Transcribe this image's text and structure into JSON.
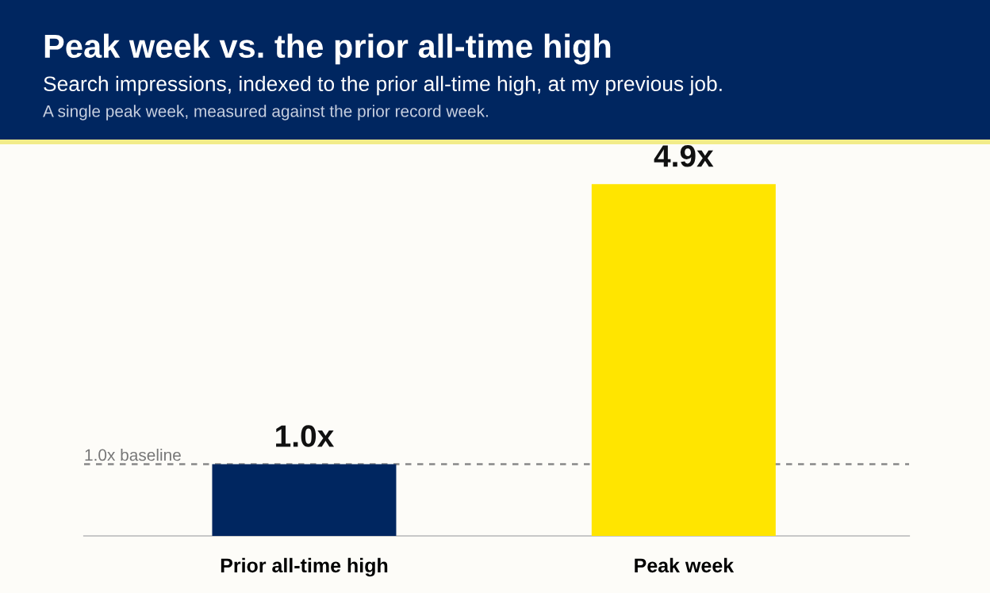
{
  "chart_data": {
    "type": "bar",
    "title": "Peak week vs. the prior all-time high",
    "subtitle": "Search impressions, indexed to the prior all-time high, at my previous job.",
    "annotations": [
      "A single peak week, measured against the prior record week."
    ],
    "categories": [
      "Prior all-time high",
      "Peak week"
    ],
    "values": [
      1.0,
      4.9
    ],
    "colors": [
      "#002660",
      "#ffe500"
    ],
    "value_labels": [
      "1.0x",
      "4.9x"
    ],
    "ref_lines": [
      {
        "axis": "y",
        "value": 1.0,
        "label": "1.0x baseline",
        "color": "#888888",
        "line_style": "dashed"
      }
    ],
    "grid": false,
    "legend": false
  }
}
